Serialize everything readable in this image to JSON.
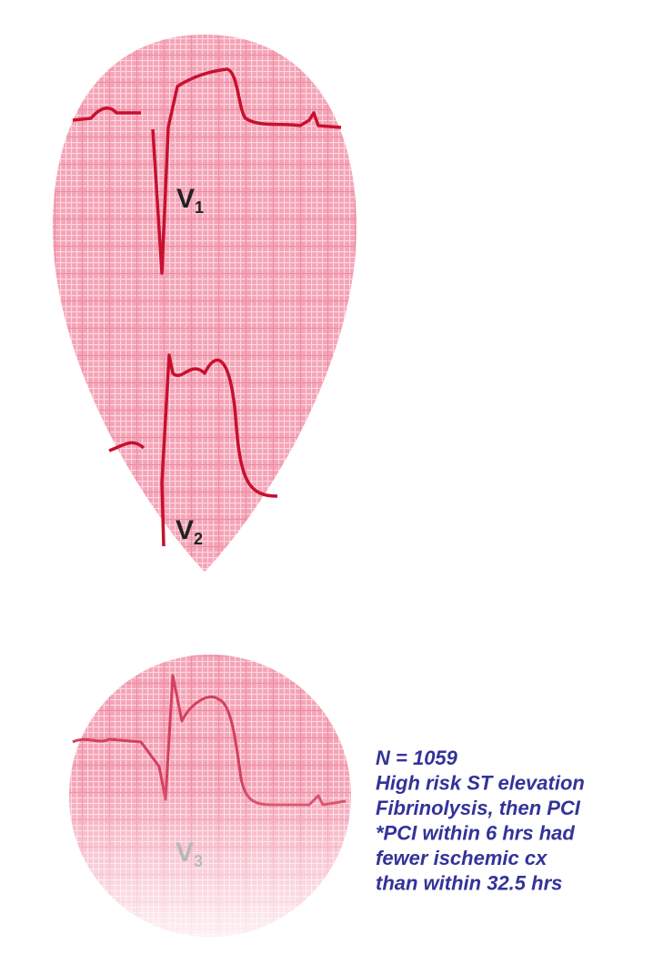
{
  "leads": [
    {
      "letter": "V",
      "sub": "1"
    },
    {
      "letter": "V",
      "sub": "2"
    },
    {
      "letter": "V",
      "sub": "3"
    }
  ],
  "notes": [
    "N = 1059",
    "High risk ST elevation",
    "Fibrinolysis, then PCI",
    "*PCI within 6 hrs had",
    "fewer ischemic cx",
    "than within 32.5 hrs"
  ]
}
